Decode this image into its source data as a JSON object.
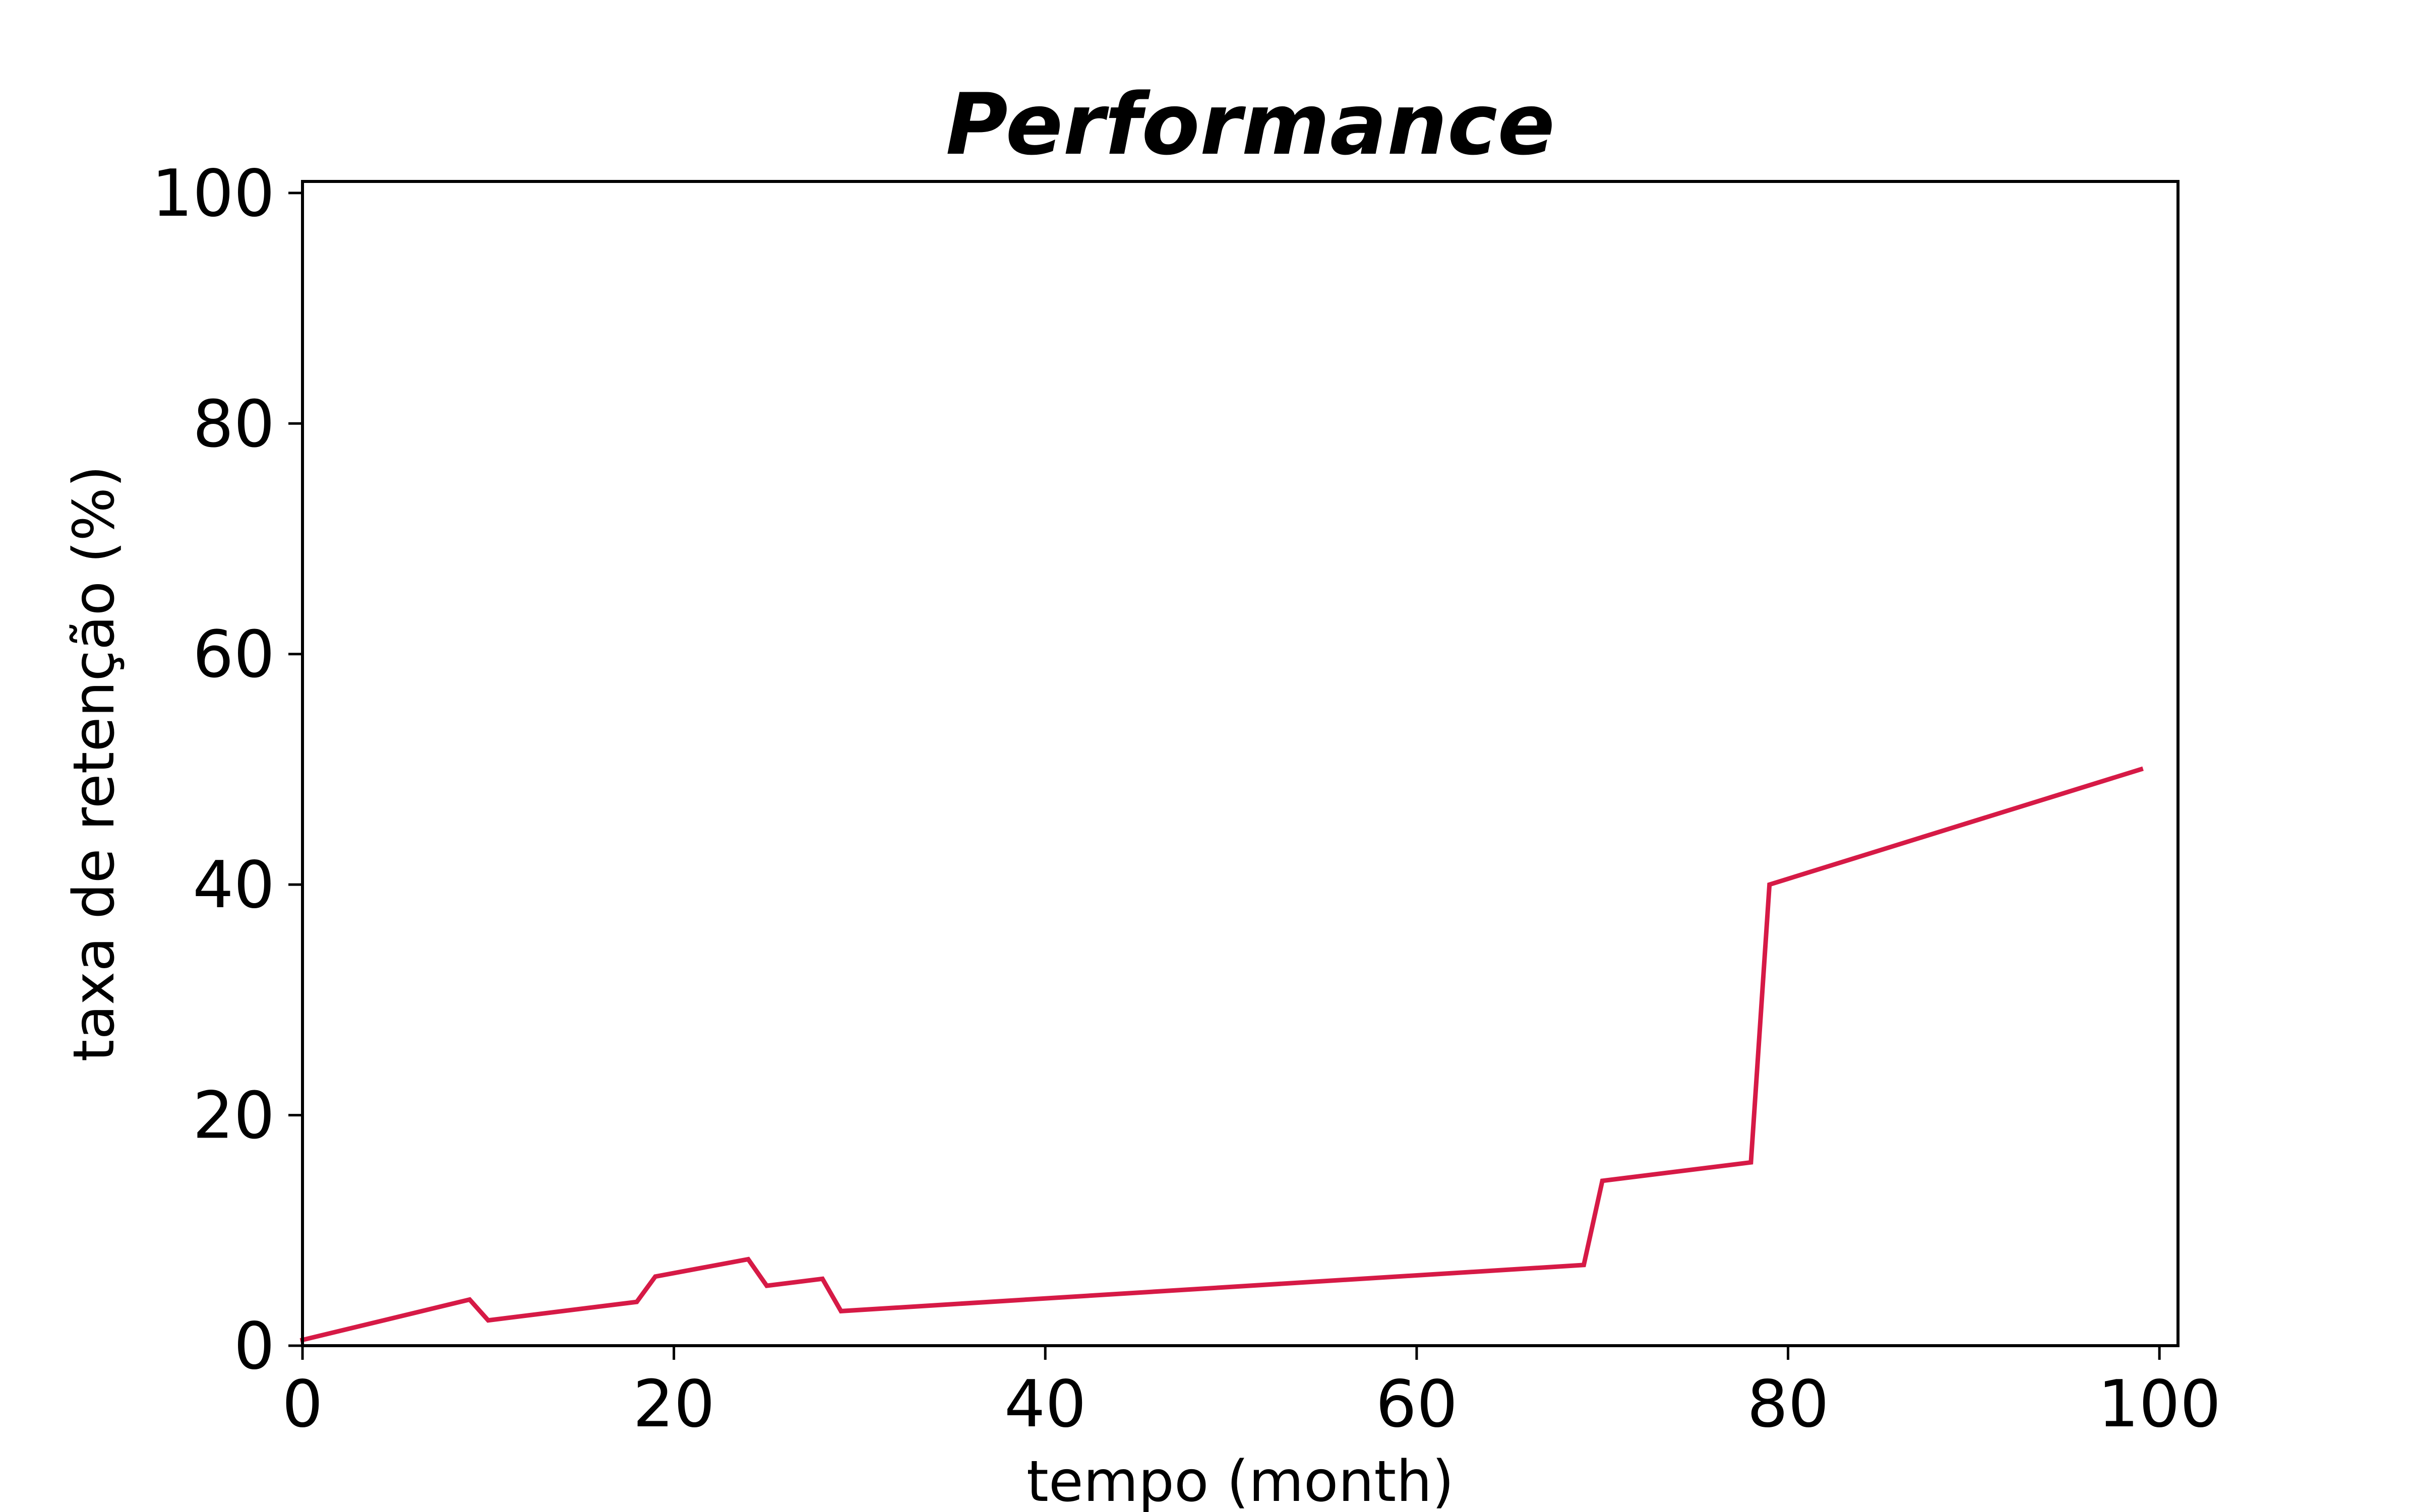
{
  "chart_data": {
    "type": "line",
    "title": "Performance",
    "xlabel": "tempo (month)",
    "ylabel": "taxa de retenção (%)",
    "xlim": [
      0,
      101
    ],
    "ylim": [
      0,
      101
    ],
    "xticks": [
      0,
      20,
      40,
      60,
      80,
      100
    ],
    "yticks": [
      0,
      20,
      40,
      60,
      80,
      100
    ],
    "grid": false,
    "series": [
      {
        "color": "#d61a46",
        "x": [
          0,
          9,
          10,
          18,
          19,
          24,
          25,
          28,
          29,
          69,
          70,
          78,
          79,
          99
        ],
        "y": [
          0.5,
          4.0,
          2.2,
          3.8,
          6.0,
          7.5,
          5.2,
          5.8,
          3.0,
          7.0,
          14.3,
          15.9,
          40.0,
          50.0
        ]
      }
    ]
  }
}
